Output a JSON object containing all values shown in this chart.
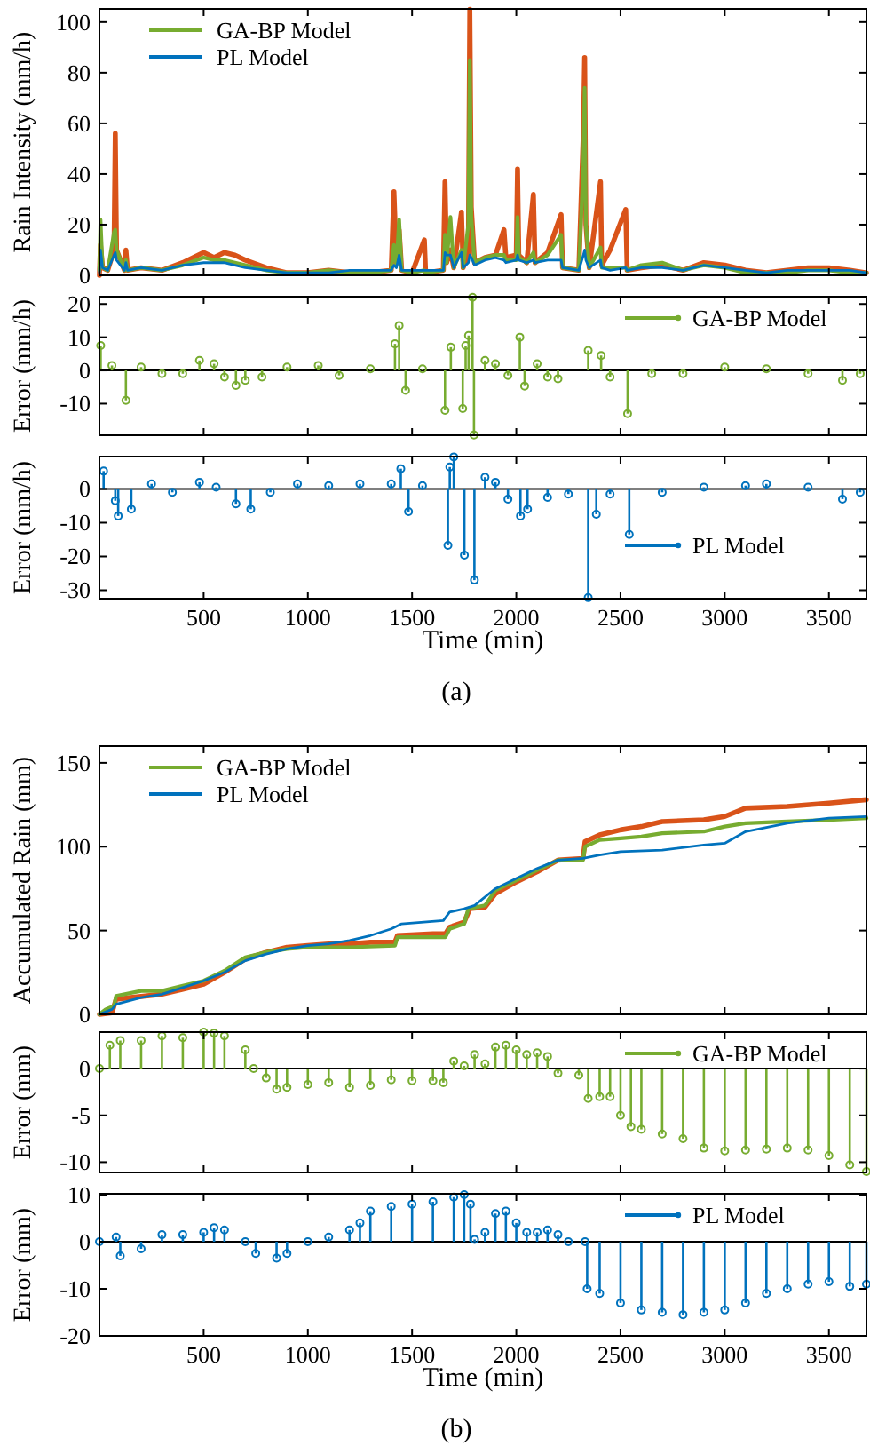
{
  "chart_data": [
    {
      "type": "line",
      "ylabel": "Rain Intensity (mm/h)",
      "xlim": [
        0,
        3680
      ],
      "ylim": [
        0,
        105.2
      ],
      "xticks": [
        500,
        1000,
        1500,
        2000,
        2500,
        3000,
        3500
      ],
      "yticks": [
        0,
        20,
        40,
        60,
        80,
        100
      ],
      "tick_labels": "y",
      "legend": "top left",
      "x": [
        0,
        5,
        15,
        40,
        70,
        76,
        82,
        120,
        127,
        135,
        200,
        300,
        400,
        500,
        550,
        600,
        650,
        700,
        800,
        900,
        1000,
        1100,
        1200,
        1300,
        1400,
        1413,
        1425,
        1438,
        1450,
        1500,
        1559,
        1565,
        1650,
        1658,
        1666,
        1684,
        1700,
        1737,
        1745,
        1770,
        1777,
        1784,
        1800,
        1850,
        1900,
        1941,
        1950,
        2000,
        2006,
        2012,
        2050,
        2082,
        2090,
        2150,
        2215,
        2222,
        2300,
        2322,
        2328,
        2334,
        2350,
        2404,
        2410,
        2450,
        2525,
        2532,
        2600,
        2700,
        2800,
        2900,
        3000,
        3100,
        3200,
        3300,
        3400,
        3500,
        3600,
        3680
      ],
      "series": [
        {
          "color": "#d95319",
          "values": [
            0,
            12,
            3,
            2,
            10,
            56,
            10,
            2,
            10,
            2,
            3,
            2,
            5,
            9,
            7,
            9,
            8,
            6,
            3,
            1,
            1,
            2,
            1,
            1,
            2,
            33,
            5,
            18,
            2,
            1,
            14,
            1,
            2,
            37,
            5,
            10,
            3,
            25,
            3,
            8,
            105,
            27,
            5,
            7,
            8,
            18,
            7,
            8,
            42,
            8,
            5,
            32,
            5,
            9,
            24,
            3,
            2,
            57,
            86,
            20,
            3,
            37,
            4,
            10,
            26,
            2,
            3,
            4,
            2,
            5,
            4,
            2,
            1,
            2,
            3,
            3,
            2,
            1
          ]
        },
        {
          "name": "GA-BP Model",
          "color": "#77ac30",
          "values": [
            2,
            22,
            3,
            2,
            17,
            18,
            10,
            2,
            6,
            2,
            3,
            2,
            4,
            7,
            6,
            6,
            5,
            4,
            2,
            1,
            1,
            2,
            1,
            1,
            2,
            12,
            4,
            22,
            2,
            1,
            2,
            1,
            2,
            16,
            5,
            23,
            3,
            10,
            3,
            20,
            85,
            23,
            5,
            7,
            8,
            8,
            6,
            6,
            23,
            7,
            5,
            9,
            5,
            8,
            16,
            3,
            2,
            43,
            74,
            20,
            3,
            11,
            3,
            3,
            3,
            2,
            4,
            5,
            2,
            4,
            3,
            1,
            1,
            1,
            2,
            2,
            1,
            1
          ]
        },
        {
          "name": "PL Model",
          "color": "#0072bd",
          "values": [
            1,
            10,
            3,
            2,
            8,
            9,
            6,
            2,
            5,
            2,
            3,
            2,
            4,
            5,
            5,
            5,
            4,
            3,
            2,
            1,
            1,
            1,
            2,
            2,
            2,
            4,
            3,
            8,
            2,
            2,
            2,
            2,
            2,
            9,
            8,
            8,
            3,
            9,
            3,
            5,
            8,
            7,
            4,
            6,
            7,
            6,
            5,
            6,
            8,
            6,
            5,
            6,
            5,
            6,
            6,
            3,
            2,
            8,
            10,
            6,
            3,
            6,
            3,
            2,
            3,
            2,
            3,
            3,
            2,
            4,
            3,
            2,
            1,
            2,
            2,
            2,
            2,
            1
          ]
        }
      ]
    },
    {
      "type": "lollipop",
      "ylabel": "Error (mm/h)",
      "xlim": [
        0,
        3680
      ],
      "ylim": [
        -19.5,
        22.2
      ],
      "xticks": [
        500,
        1000,
        1500,
        2000,
        2500,
        3000,
        3500
      ],
      "yticks": [
        -10,
        0,
        10,
        20
      ],
      "tick_labels": "y",
      "legend": "top right",
      "marker": "circle",
      "ref_lines": [
        {
          "axis": "y",
          "value": 0,
          "color": "#000000"
        }
      ],
      "series": [
        {
          "name": "GA-BP Model",
          "color": "#77ac30",
          "x": [
            6,
            60,
            127,
            200,
            300,
            400,
            480,
            550,
            600,
            655,
            700,
            780,
            900,
            1050,
            1150,
            1300,
            1418,
            1438,
            1469,
            1550,
            1658,
            1686,
            1743,
            1757,
            1771,
            1790,
            1797,
            1850,
            1900,
            1960,
            2017,
            2040,
            2100,
            2150,
            2200,
            2345,
            2407,
            2450,
            2534,
            2650,
            2800,
            3000,
            3200,
            3400,
            3565,
            3650
          ],
          "values": [
            7.5,
            1.5,
            -9,
            1,
            -1,
            -1,
            3,
            2,
            -2,
            -4.5,
            -3,
            -2,
            1,
            1.5,
            -1.5,
            0.5,
            8,
            13.5,
            -6,
            0.5,
            -12,
            7,
            -11.5,
            7.5,
            10.5,
            22,
            -19.4,
            3,
            2,
            -1.5,
            10,
            -4.7,
            2,
            -2,
            -2.5,
            6,
            4.5,
            -2,
            -13,
            -1,
            -1,
            1,
            0.5,
            -1,
            -3,
            -1
          ]
        }
      ]
    },
    {
      "type": "lollipop",
      "ylabel": "Error (mm/h)",
      "xlabel": "Time (min)",
      "xlim": [
        0,
        3680
      ],
      "ylim": [
        -32.5,
        9.6
      ],
      "xticks": [
        500,
        1000,
        1500,
        2000,
        2500,
        3000,
        3500
      ],
      "yticks": [
        -30,
        -20,
        -10,
        0
      ],
      "legend": "right",
      "marker": "circle",
      "ref_lines": [
        {
          "axis": "y",
          "value": 0,
          "color": "#000000"
        }
      ],
      "annotations": [
        "(a)"
      ],
      "series": [
        {
          "name": "PL Model",
          "color": "#0072bd",
          "x": [
            20,
            76,
            90,
            153,
            250,
            350,
            480,
            560,
            655,
            726,
            820,
            950,
            1100,
            1250,
            1400,
            1446,
            1483,
            1550,
            1672,
            1681,
            1700,
            1751,
            1799,
            1850,
            1900,
            1960,
            2020,
            2054,
            2150,
            2250,
            2345,
            2384,
            2450,
            2542,
            2700,
            2900,
            3100,
            3200,
            3400,
            3565,
            3650
          ],
          "values": [
            5.3,
            -3.5,
            -8,
            -6,
            1.5,
            -1,
            2,
            0.5,
            -4.4,
            -6,
            -1,
            1.5,
            1,
            1.5,
            1.5,
            6,
            -6.7,
            1,
            -16.7,
            6.5,
            9.5,
            -19.6,
            -27,
            3.5,
            2,
            -3,
            -8,
            -6,
            -2.5,
            -1.5,
            -32.2,
            -7.5,
            -1.5,
            -13.5,
            -1,
            0.5,
            1,
            1.5,
            0.5,
            -3,
            -1
          ]
        }
      ]
    },
    {
      "type": "line",
      "ylabel": "Accumulated Rain (mm)",
      "xlim": [
        0,
        3680
      ],
      "ylim": [
        0,
        160
      ],
      "xticks": [
        500,
        1000,
        1500,
        2000,
        2500,
        3000,
        3500
      ],
      "yticks": [
        0,
        50,
        100,
        150
      ],
      "tick_labels": "y",
      "legend": "top left",
      "series": [
        {
          "color": "#d95319",
          "x": [
            0,
            60,
            80,
            150,
            300,
            400,
            500,
            600,
            700,
            800,
            900,
            1000,
            1100,
            1200,
            1300,
            1418,
            1430,
            1600,
            1660,
            1680,
            1750,
            1777,
            1850,
            1900,
            2000,
            2100,
            2200,
            2320,
            2330,
            2400,
            2500,
            2600,
            2700,
            2900,
            3000,
            3100,
            3300,
            3500,
            3680
          ],
          "values": [
            0,
            1,
            9,
            10,
            12,
            15,
            18,
            25,
            33,
            37,
            40,
            41,
            42,
            42,
            43,
            43,
            47,
            48,
            48,
            52,
            55,
            63,
            64,
            72,
            79,
            85,
            92,
            93,
            103,
            107,
            110,
            112,
            115,
            116,
            118,
            123,
            124,
            126,
            128
          ]
        },
        {
          "name": "GA-BP Model",
          "color": "#77ac30",
          "x": [
            0,
            30,
            70,
            80,
            200,
            300,
            400,
            500,
            600,
            700,
            800,
            900,
            1000,
            1200,
            1418,
            1430,
            1660,
            1680,
            1750,
            1770,
            1850,
            1900,
            2000,
            2100,
            2200,
            2320,
            2330,
            2400,
            2500,
            2600,
            2700,
            2900,
            3000,
            3100,
            3300,
            3500,
            3680
          ],
          "values": [
            0,
            3,
            5,
            11,
            14,
            14,
            17,
            20,
            26,
            34,
            37,
            39,
            40,
            40,
            41,
            46,
            46,
            51,
            54,
            63,
            65,
            74,
            80,
            86,
            92,
            92,
            100,
            104,
            105,
            106,
            108,
            109,
            112,
            114,
            115,
            116,
            117
          ]
        },
        {
          "name": "PL Model",
          "color": "#0072bd",
          "x": [
            0,
            60,
            80,
            200,
            300,
            400,
            500,
            600,
            700,
            800,
            900,
            1000,
            1100,
            1200,
            1300,
            1400,
            1450,
            1650,
            1680,
            1750,
            1800,
            1900,
            2000,
            2100,
            2200,
            2320,
            2400,
            2500,
            2700,
            2900,
            3000,
            3100,
            3300,
            3500,
            3680
          ],
          "values": [
            0,
            3,
            6,
            10,
            12,
            16,
            20,
            25,
            32,
            36,
            39,
            41,
            42,
            44,
            47,
            51,
            54,
            56,
            61,
            63,
            65,
            75,
            81,
            87,
            92,
            93,
            95,
            97,
            98,
            101,
            102,
            109,
            114,
            117,
            118
          ]
        }
      ]
    },
    {
      "type": "lollipop",
      "ylabel": "Error (mm)",
      "xlim": [
        0,
        3680
      ],
      "ylim": [
        -11.1,
        3.9
      ],
      "xticks": [
        500,
        1000,
        1500,
        2000,
        2500,
        3000,
        3500
      ],
      "yticks": [
        -10,
        -5,
        0
      ],
      "tick_labels": "y",
      "legend": "top right",
      "marker": "circle",
      "ref_lines": [
        {
          "axis": "y",
          "value": 0,
          "color": "#000000"
        }
      ],
      "series": [
        {
          "name": "GA-BP Model",
          "color": "#77ac30",
          "x": [
            0,
            50,
            100,
            200,
            300,
            400,
            500,
            550,
            600,
            700,
            740,
            800,
            850,
            900,
            1000,
            1100,
            1200,
            1300,
            1400,
            1500,
            1600,
            1650,
            1700,
            1750,
            1800,
            1850,
            1900,
            1950,
            2000,
            2050,
            2100,
            2150,
            2200,
            2300,
            2345,
            2400,
            2450,
            2500,
            2550,
            2600,
            2700,
            2800,
            2900,
            3000,
            3100,
            3200,
            3300,
            3400,
            3500,
            3600,
            3680
          ],
          "values": [
            0,
            2.5,
            3,
            3,
            3.5,
            3.3,
            3.9,
            3.8,
            3.5,
            2,
            0,
            -1,
            -2.2,
            -2,
            -1.7,
            -1.5,
            -2,
            -1.8,
            -1.2,
            -1.3,
            -1.3,
            -1.5,
            0.8,
            0.3,
            1.5,
            0.5,
            2.3,
            2.5,
            2,
            1.5,
            1.7,
            1.3,
            -0.5,
            -0.7,
            -3.2,
            -3,
            -3,
            -5,
            -6.2,
            -6.5,
            -7,
            -7.5,
            -8.5,
            -8.8,
            -8.7,
            -8.6,
            -8.5,
            -8.7,
            -9.3,
            -10.3,
            -11
          ]
        }
      ]
    },
    {
      "type": "lollipop",
      "ylabel": "Error (mm)",
      "xlabel": "Time (min)",
      "xlim": [
        0,
        3680
      ],
      "ylim": [
        -20,
        10.2
      ],
      "xticks": [
        500,
        1000,
        1500,
        2000,
        2500,
        3000,
        3500
      ],
      "yticks": [
        -20,
        -10,
        0,
        10
      ],
      "legend": "top right",
      "marker": "circle",
      "ref_lines": [
        {
          "axis": "y",
          "value": 0,
          "color": "#000000"
        }
      ],
      "annotations": [
        "(b)"
      ],
      "series": [
        {
          "name": "PL Model",
          "color": "#0072bd",
          "x": [
            0,
            80,
            100,
            200,
            300,
            400,
            500,
            550,
            600,
            700,
            750,
            850,
            900,
            1000,
            1100,
            1200,
            1250,
            1300,
            1400,
            1500,
            1600,
            1700,
            1750,
            1780,
            1800,
            1850,
            1900,
            1950,
            2000,
            2050,
            2100,
            2150,
            2200,
            2250,
            2330,
            2340,
            2400,
            2500,
            2600,
            2700,
            2800,
            2900,
            3000,
            3100,
            3200,
            3300,
            3400,
            3500,
            3600,
            3680
          ],
          "values": [
            0,
            1,
            -3,
            -1.5,
            1.5,
            1.5,
            2,
            3,
            2.5,
            0,
            -2.5,
            -3.5,
            -2.5,
            0,
            1,
            2.5,
            4,
            6.5,
            7.5,
            8,
            8.5,
            9.5,
            10,
            8,
            0.5,
            2,
            6,
            6.5,
            4,
            2,
            2,
            2.5,
            1.5,
            0,
            0,
            -10,
            -11,
            -13,
            -14.5,
            -15,
            -15.5,
            -15,
            -14.5,
            -13,
            -11,
            -10,
            -9,
            -8.5,
            -9.5,
            -9
          ]
        }
      ]
    }
  ]
}
